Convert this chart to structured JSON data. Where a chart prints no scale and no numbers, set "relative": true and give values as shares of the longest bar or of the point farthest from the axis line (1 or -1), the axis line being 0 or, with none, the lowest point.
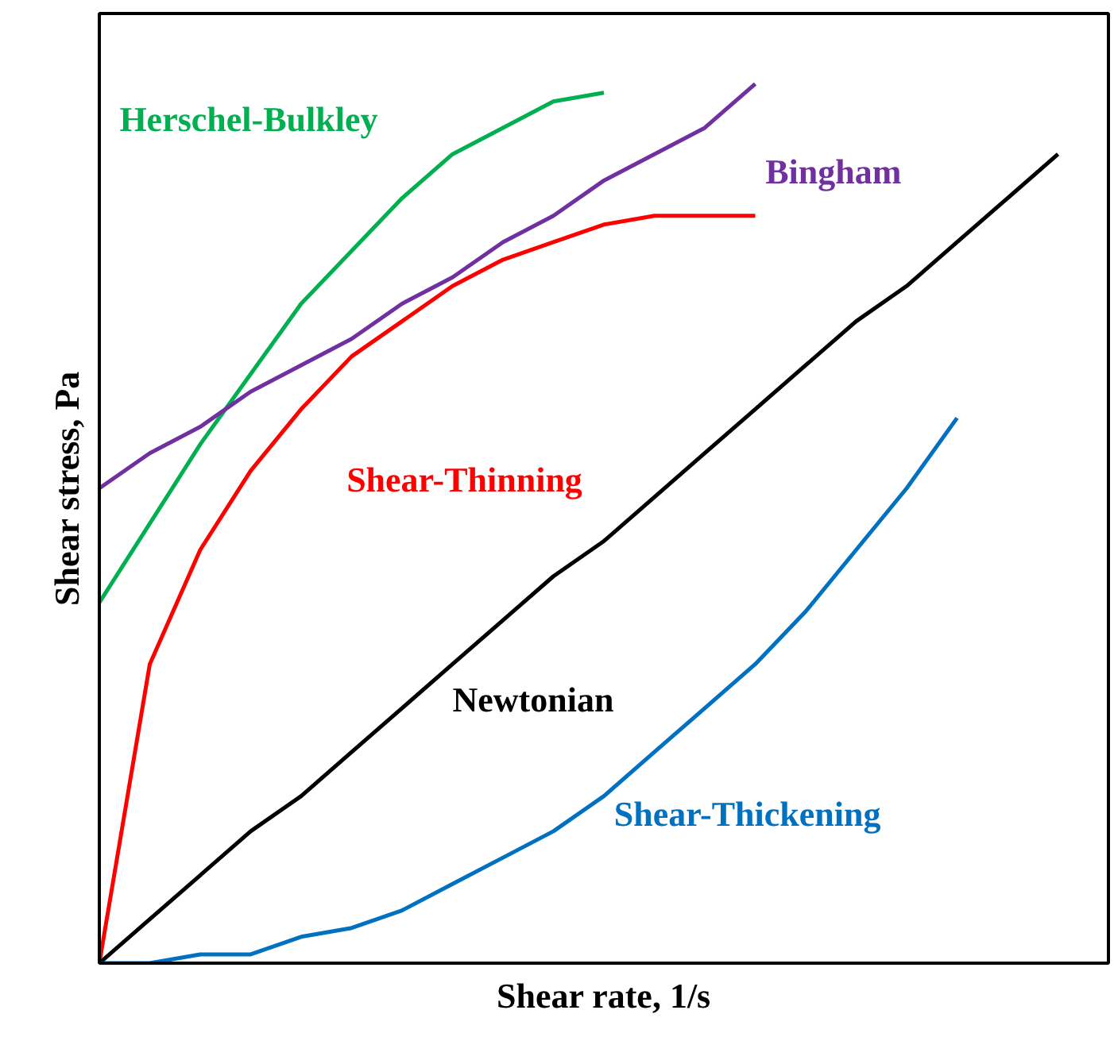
{
  "chart_data": {
    "type": "line",
    "relative": true,
    "xlabel": "Shear rate, 1/s",
    "ylabel": "Shear stress, Pa",
    "categories": [
      null,
      null,
      null,
      null,
      null,
      null,
      null,
      null,
      null,
      null,
      null,
      null,
      null,
      null,
      null,
      null,
      null,
      null,
      null,
      null,
      null
    ],
    "series": [
      {
        "name": "Herschel-Bulkley",
        "color": "#00b050",
        "values": [
          0.41,
          0.5,
          0.59,
          0.67,
          0.75,
          0.81,
          0.87,
          0.92,
          0.95,
          0.98,
          0.99,
          null,
          null,
          null,
          null,
          null,
          null,
          null,
          null,
          null,
          null
        ]
      },
      {
        "name": "Bingham",
        "color": "#7030a0",
        "values": [
          0.54,
          0.58,
          0.61,
          0.65,
          0.68,
          0.71,
          0.75,
          0.78,
          0.82,
          0.85,
          0.89,
          0.92,
          0.95,
          1.0,
          null,
          null,
          null,
          null,
          null,
          null,
          null
        ]
      },
      {
        "name": "Shear-Thinning",
        "color": "#ff0000",
        "values": [
          0,
          0.34,
          0.47,
          0.56,
          0.63,
          0.69,
          0.73,
          0.77,
          0.8,
          0.82,
          0.84,
          0.85,
          0.85,
          0.85,
          null,
          null,
          null,
          null,
          null,
          null,
          null
        ]
      },
      {
        "name": "Newtonian",
        "color": "#000000",
        "values": [
          0,
          0.05,
          0.1,
          0.15,
          0.19,
          0.24,
          0.29,
          0.34,
          0.39,
          0.44,
          0.48,
          0.53,
          0.58,
          0.63,
          0.68,
          0.73,
          0.77,
          0.82,
          0.87,
          0.92,
          null
        ]
      },
      {
        "name": "Shear-Thickening",
        "color": "#0070c0",
        "values": [
          0,
          0,
          0.01,
          0.01,
          0.03,
          0.04,
          0.06,
          0.09,
          0.12,
          0.15,
          0.19,
          0.24,
          0.29,
          0.34,
          0.4,
          0.47,
          0.54,
          0.62,
          null,
          null,
          null
        ]
      }
    ],
    "marker": "none",
    "line_style": "solid"
  }
}
